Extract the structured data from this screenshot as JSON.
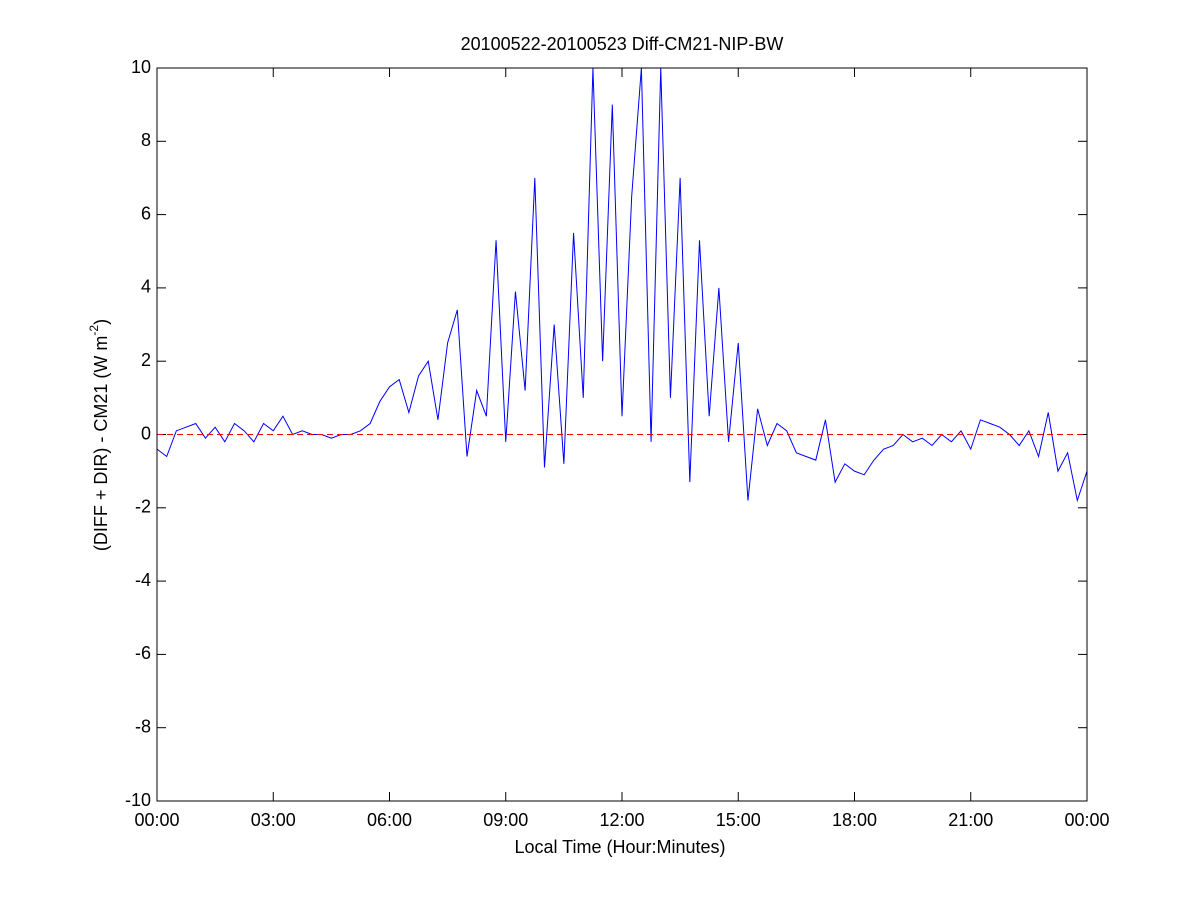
{
  "chart_data": {
    "type": "line",
    "title": "20100522-20100523 Diff-CM21-NIP-BW",
    "xlabel": "Local Time (Hour:Minutes)",
    "ylabel": [
      "(DIFF + DIR) - CM21 (W m",
      "-2",
      ")"
    ],
    "x": [
      0,
      0.25,
      0.5,
      0.75,
      1,
      1.25,
      1.5,
      1.75,
      2,
      2.25,
      2.5,
      2.75,
      3,
      3.25,
      3.5,
      3.75,
      4,
      4.25,
      4.5,
      4.75,
      5,
      5.25,
      5.5,
      5.75,
      6,
      6.25,
      6.5,
      6.75,
      7,
      7.25,
      7.5,
      7.75,
      8,
      8.25,
      8.5,
      8.75,
      9,
      9.25,
      9.5,
      9.75,
      10,
      10.25,
      10.5,
      10.75,
      11,
      11.25,
      11.5,
      11.75,
      12,
      12.25,
      12.5,
      12.75,
      13,
      13.25,
      13.5,
      13.75,
      14,
      14.25,
      14.5,
      14.75,
      15,
      15.25,
      15.5,
      15.75,
      16,
      16.25,
      16.5,
      16.75,
      17,
      17.25,
      17.5,
      17.75,
      18,
      18.25,
      18.5,
      18.75,
      19,
      19.25,
      19.5,
      19.75,
      20,
      20.25,
      20.5,
      20.75,
      21,
      21.25,
      21.5,
      21.75,
      22,
      22.25,
      22.5,
      22.75,
      23,
      23.25,
      23.5,
      23.75,
      24
    ],
    "series": [
      {
        "color": "#0000ff",
        "values": [
          -0.4,
          -0.6,
          0.1,
          0.2,
          0.3,
          -0.1,
          0.2,
          -0.2,
          0.3,
          0.1,
          -0.2,
          0.3,
          0.1,
          0.5,
          0.0,
          0.1,
          0.0,
          0.0,
          -0.1,
          0.0,
          0.0,
          0.1,
          0.3,
          0.9,
          1.3,
          1.5,
          0.6,
          1.6,
          2.0,
          0.4,
          2.5,
          3.4,
          -0.6,
          1.2,
          0.5,
          5.3,
          -0.2,
          3.9,
          1.2,
          7.0,
          -0.9,
          3.0,
          -0.8,
          5.5,
          1.0,
          10.0,
          2.0,
          9.0,
          0.5,
          6.5,
          10.0,
          -0.2,
          10.0,
          1.0,
          7.0,
          -1.3,
          5.3,
          0.5,
          4.0,
          -0.2,
          2.5,
          -1.8,
          0.7,
          -0.3,
          0.3,
          0.1,
          -0.5,
          -0.6,
          -0.7,
          0.4,
          -1.3,
          -0.8,
          -1.0,
          -1.1,
          -0.7,
          -0.4,
          -0.3,
          0.0,
          -0.2,
          -0.1,
          -0.3,
          0.0,
          -0.2,
          0.1,
          -0.4,
          0.4,
          0.3,
          0.2,
          0.0,
          -0.3,
          0.1,
          -0.6,
          0.6,
          -1.0,
          -0.5,
          -1.8,
          -1.0
        ]
      }
    ],
    "reference_line": {
      "value": 0,
      "color": "#ff0000"
    },
    "xlim": [
      0,
      24
    ],
    "xticks": [
      {
        "value": 0,
        "label": "00:00"
      },
      {
        "value": 3,
        "label": "03:00"
      },
      {
        "value": 6,
        "label": "06:00"
      },
      {
        "value": 9,
        "label": "09:00"
      },
      {
        "value": 12,
        "label": "12:00"
      },
      {
        "value": 15,
        "label": "15:00"
      },
      {
        "value": 18,
        "label": "18:00"
      },
      {
        "value": 21,
        "label": "21:00"
      },
      {
        "value": 24,
        "label": "00:00"
      }
    ],
    "ylim": [
      -10,
      10
    ],
    "yticks": [
      -10,
      -8,
      -6,
      -4,
      -2,
      0,
      2,
      4,
      6,
      8,
      10
    ],
    "grid": false
  }
}
